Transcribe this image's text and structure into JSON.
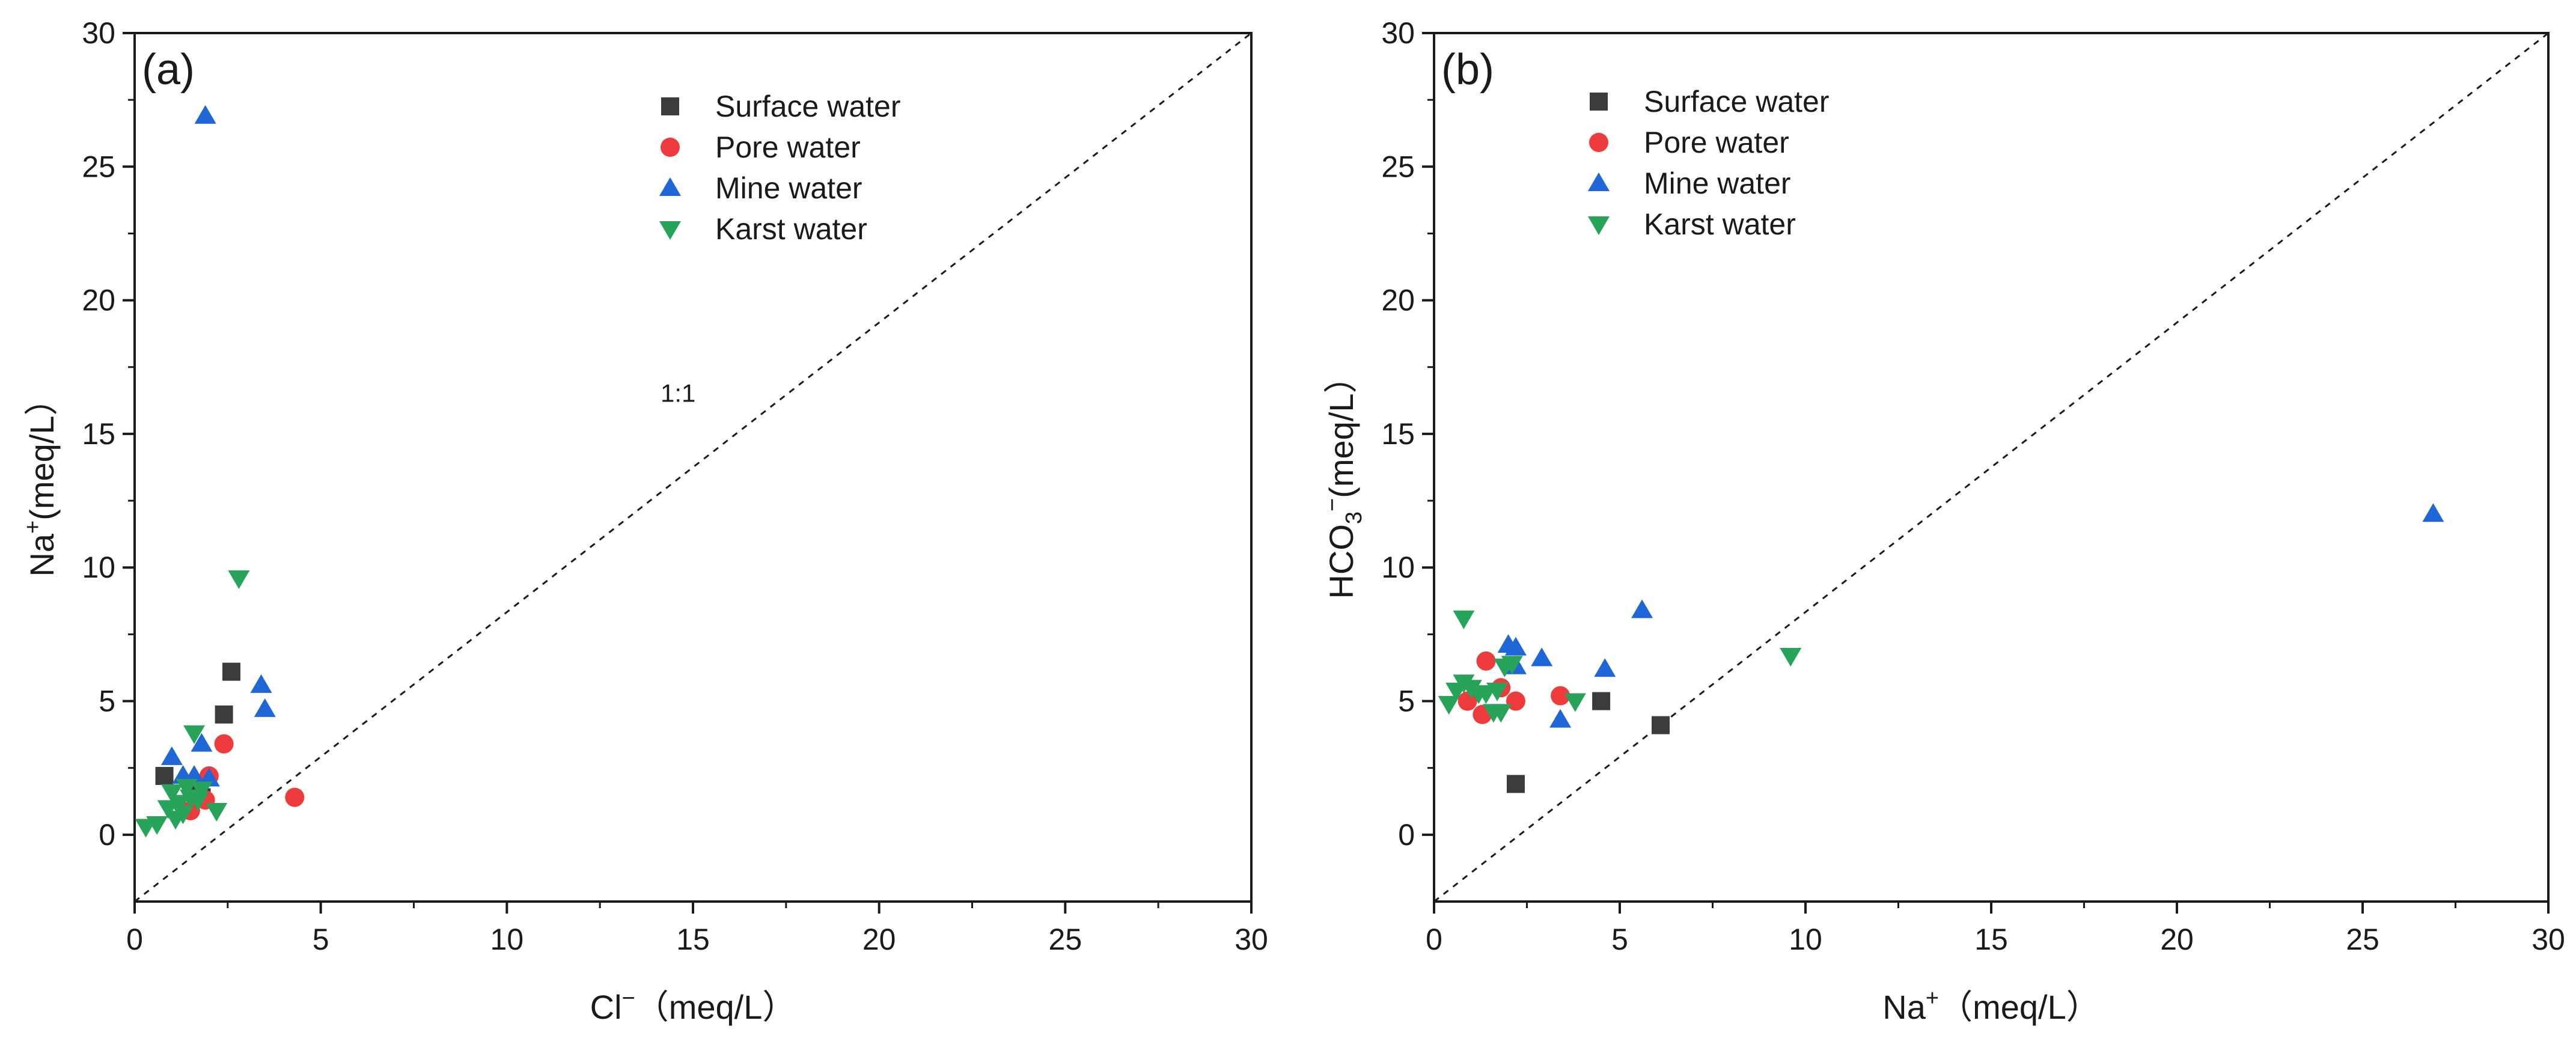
{
  "colors": {
    "surface": "#3b3b3b",
    "pore": "#ee3b3b",
    "mine": "#1f66d6",
    "karst": "#27a35a",
    "axis": "#1a1a1a"
  },
  "series_meta": [
    {
      "key": "surface",
      "name": "Surface water",
      "marker": "square"
    },
    {
      "key": "pore",
      "name": "Pore water",
      "marker": "circle"
    },
    {
      "key": "mine",
      "name": "Mine water",
      "marker": "triangle-up"
    },
    {
      "key": "karst",
      "name": "Karst water",
      "marker": "triangle-down"
    }
  ],
  "chart_data": [
    {
      "type": "scatter",
      "panel_label": "(a)",
      "xlabel_main": "Cl",
      "xlabel_sup": "−",
      "xlabel_unit": "（meq/L）",
      "ylabel_main": "Na",
      "ylabel_sup": "+",
      "ylabel_unit": "(meq/L）",
      "xlim": [
        0,
        30
      ],
      "ylim": [
        -2.5,
        30
      ],
      "xticks": [
        "0",
        "5",
        "10",
        "15",
        "20",
        "25",
        "30"
      ],
      "yticks": [
        "0",
        "5",
        "10",
        "15",
        "20",
        "25",
        "30"
      ],
      "reference_line": {
        "label": "1:1",
        "label_x": 14.6,
        "label_y": 16.2
      },
      "legend_position": "top-right",
      "series": {
        "surface": [
          [
            0.8,
            2.2
          ],
          [
            2.4,
            4.5
          ],
          [
            2.6,
            6.1
          ],
          [
            1.6,
            1.9
          ],
          [
            1.8,
            1.4
          ]
        ],
        "pore": [
          [
            4.3,
            1.4
          ],
          [
            2.4,
            3.4
          ],
          [
            1.5,
            0.9
          ],
          [
            1.9,
            1.3
          ],
          [
            2.0,
            2.2
          ]
        ],
        "mine": [
          [
            1.9,
            26.9
          ],
          [
            3.4,
            5.6
          ],
          [
            3.5,
            4.7
          ],
          [
            1.0,
            2.9
          ],
          [
            1.8,
            3.4
          ],
          [
            1.3,
            2.2
          ],
          [
            2.0,
            2.1
          ],
          [
            1.6,
            2.2
          ]
        ],
        "karst": [
          [
            2.8,
            9.6
          ],
          [
            1.6,
            3.8
          ],
          [
            0.3,
            0.3
          ],
          [
            0.6,
            0.4
          ],
          [
            1.0,
            1.6
          ],
          [
            1.2,
            1.2
          ],
          [
            1.4,
            1.8
          ],
          [
            1.5,
            1.4
          ],
          [
            1.7,
            1.3
          ],
          [
            2.2,
            0.9
          ],
          [
            0.9,
            1.0
          ],
          [
            1.1,
            0.6
          ],
          [
            1.8,
            1.7
          ],
          [
            1.3,
            0.8
          ]
        ]
      }
    },
    {
      "type": "scatter",
      "panel_label": "(b)",
      "xlabel_main": "Na",
      "xlabel_sup": "+",
      "xlabel_unit": "（meq/L）",
      "ylabel_main": "HCO",
      "ylabel_sub": "3",
      "ylabel_sup": "−",
      "ylabel_unit": "(meq/L）",
      "xlim": [
        0,
        30
      ],
      "ylim": [
        -2.5,
        30
      ],
      "xticks": [
        "0",
        "5",
        "10",
        "15",
        "20",
        "25",
        "30"
      ],
      "yticks": [
        "0",
        "5",
        "10",
        "15",
        "20",
        "25",
        "30"
      ],
      "legend_position": "top-left",
      "series": {
        "surface": [
          [
            2.2,
            1.9
          ],
          [
            4.5,
            5.0
          ],
          [
            6.1,
            4.1
          ]
        ],
        "pore": [
          [
            0.9,
            5.0
          ],
          [
            1.3,
            4.5
          ],
          [
            1.4,
            6.5
          ],
          [
            1.8,
            5.5
          ],
          [
            2.2,
            5.0
          ],
          [
            3.4,
            5.2
          ]
        ],
        "mine": [
          [
            2.0,
            7.1
          ],
          [
            2.2,
            7.0
          ],
          [
            2.2,
            6.3
          ],
          [
            2.9,
            6.6
          ],
          [
            3.4,
            4.3
          ],
          [
            4.6,
            6.2
          ],
          [
            5.6,
            8.4
          ],
          [
            26.9,
            12.0
          ]
        ],
        "karst": [
          [
            0.8,
            8.1
          ],
          [
            0.4,
            4.9
          ],
          [
            0.6,
            5.4
          ],
          [
            0.8,
            5.7
          ],
          [
            1.0,
            5.5
          ],
          [
            1.2,
            5.3
          ],
          [
            1.4,
            5.3
          ],
          [
            1.6,
            4.6
          ],
          [
            1.7,
            5.4
          ],
          [
            1.8,
            4.6
          ],
          [
            1.9,
            6.3
          ],
          [
            2.1,
            6.4
          ],
          [
            3.8,
            5.0
          ],
          [
            9.6,
            6.7
          ]
        ]
      }
    }
  ]
}
